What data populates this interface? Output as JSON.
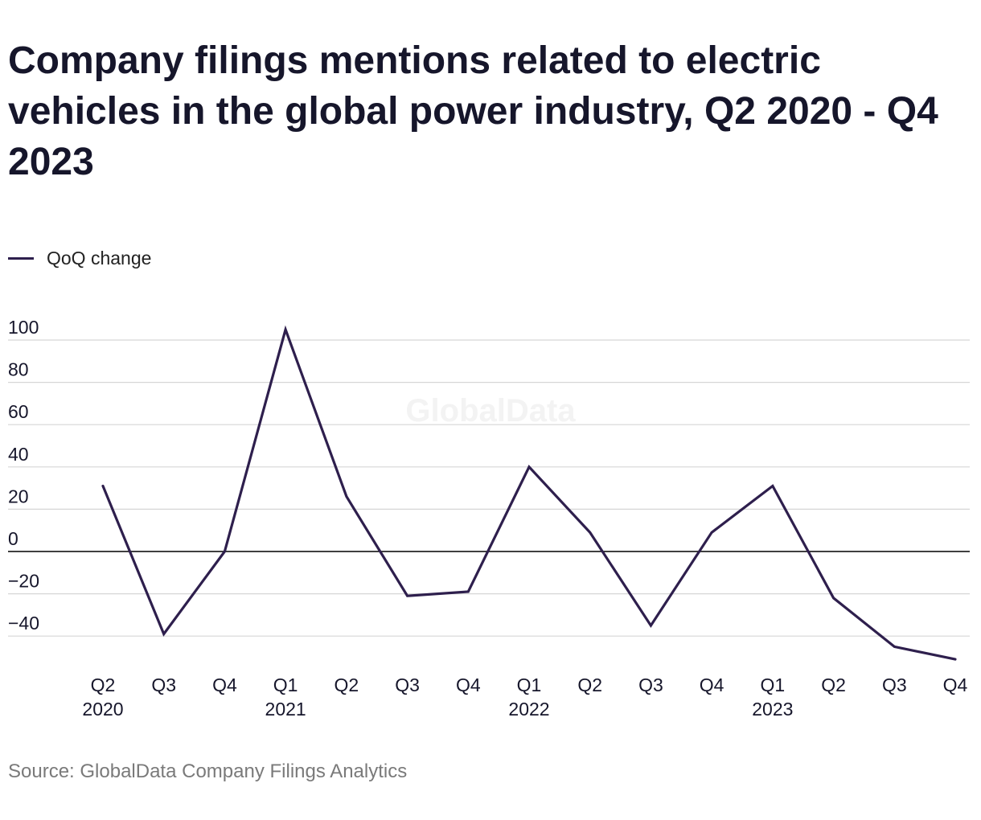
{
  "title": "Company filings mentions related to electric vehicles in the global power industry, Q2 2020 - Q4 2023",
  "source": "Source: GlobalData Company Filings Analytics",
  "watermark": "GlobalData",
  "colors": {
    "line": "#2e1f4d",
    "grid": "#d6d6d6",
    "zero_line": "#000000",
    "text": "#16162b",
    "source_text": "#7a7a7a"
  },
  "chart_data": {
    "type": "line",
    "ylim": [
      -50,
      105
    ],
    "yticks": [
      100,
      80,
      60,
      40,
      20,
      0,
      -20,
      -40
    ],
    "ytick_labels": [
      "100",
      "80",
      "60",
      "40",
      "20",
      "0",
      "−20",
      "−40"
    ],
    "grid": true,
    "legend_position": "top-left",
    "categories": [
      "Q2 2020",
      "Q3 2020",
      "Q4 2020",
      "Q1 2021",
      "Q2 2021",
      "Q3 2021",
      "Q4 2021",
      "Q1 2022",
      "Q2 2022",
      "Q3 2022",
      "Q4 2022",
      "Q1 2023",
      "Q2 2023",
      "Q3 2023",
      "Q4 2023"
    ],
    "tick_labels": [
      [
        "Q2",
        "2020"
      ],
      [
        "Q3",
        ""
      ],
      [
        "Q4",
        ""
      ],
      [
        "Q1",
        "2021"
      ],
      [
        "Q2",
        ""
      ],
      [
        "Q3",
        ""
      ],
      [
        "Q4",
        ""
      ],
      [
        "Q1",
        "2022"
      ],
      [
        "Q2",
        ""
      ],
      [
        "Q3",
        ""
      ],
      [
        "Q4",
        ""
      ],
      [
        "Q1",
        "2023"
      ],
      [
        "Q2",
        ""
      ],
      [
        "Q3",
        ""
      ],
      [
        "Q4",
        ""
      ]
    ],
    "series": [
      {
        "name": "QoQ change",
        "values": [
          31,
          -39,
          0,
          105,
          26,
          -21,
          -19,
          40,
          9,
          -35,
          9,
          31,
          -22,
          -45,
          -51
        ]
      }
    ]
  }
}
